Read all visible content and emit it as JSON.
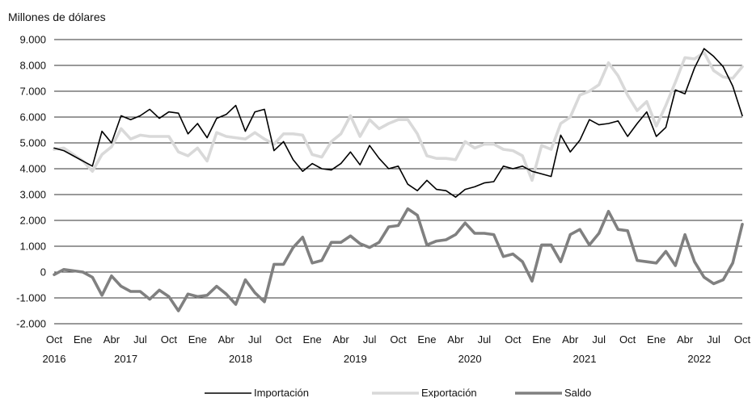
{
  "chart_data": {
    "type": "line",
    "ylabel": "Millones de dólares",
    "ylim": [
      -2000,
      9000
    ],
    "yticks": [
      -2000,
      -1000,
      0,
      1000,
      2000,
      3000,
      4000,
      5000,
      6000,
      7000,
      8000,
      9000
    ],
    "ytick_labels": [
      "-2.000",
      "-1.000",
      "0",
      "1.000",
      "2.000",
      "3.000",
      "4.000",
      "5.000",
      "6.000",
      "7.000",
      "8.000",
      "9.000"
    ],
    "grid": "horizontal",
    "x_start": "2016-10",
    "x_months": 73,
    "xtick_labels": [
      "Oct",
      "Ene",
      "Abr",
      "Jul",
      "Oct",
      "Ene",
      "Abr",
      "Jul",
      "Oct",
      "Ene",
      "Abr",
      "Jul",
      "Oct",
      "Ene",
      "Abr",
      "Jul",
      "Oct",
      "Ene",
      "Abr",
      "Jul",
      "Oct",
      "Ene",
      "Abr",
      "Jul",
      "Oct"
    ],
    "year_labels": [
      "2016",
      "2017",
      "2018",
      "2019",
      "2020",
      "2021",
      "2022"
    ],
    "legend_position": "bottom",
    "series": [
      {
        "name": "Importación",
        "color": "#000000",
        "values": [
          4800,
          4700,
          4500,
          4300,
          4100,
          5450,
          5000,
          6050,
          5900,
          6050,
          6300,
          5950,
          6200,
          6150,
          5350,
          5750,
          5200,
          5950,
          6100,
          6450,
          5450,
          6200,
          6300,
          4700,
          5050,
          4350,
          3900,
          4200,
          4000,
          3950,
          4200,
          4650,
          4150,
          4900,
          4400,
          4000,
          4100,
          3400,
          3150,
          3550,
          3200,
          3150,
          2900,
          3200,
          3300,
          3450,
          3500,
          4100,
          4000,
          4100,
          3900,
          3800,
          3700,
          5300,
          4650,
          5100,
          5900,
          5700,
          5750,
          5850,
          5250,
          5750,
          6200,
          5250,
          5600,
          7050,
          6900,
          7900,
          8650,
          8350,
          7950,
          7200,
          6050
        ]
      },
      {
        "name": "Exportación",
        "color": "#d9d9d9",
        "values": [
          4750,
          4800,
          4550,
          4300,
          3900,
          4550,
          4850,
          5550,
          5150,
          5300,
          5250,
          5250,
          5250,
          4650,
          4500,
          4800,
          4300,
          5400,
          5250,
          5200,
          5150,
          5400,
          5150,
          4950,
          5350,
          5350,
          5300,
          4550,
          4450,
          5050,
          5350,
          6050,
          5250,
          5900,
          5550,
          5750,
          5900,
          5900,
          5350,
          4500,
          4400,
          4400,
          4350,
          5050,
          4800,
          4950,
          4950,
          4750,
          4700,
          4500,
          3550,
          4900,
          4750,
          5750,
          6000,
          6850,
          7000,
          7250,
          8100,
          7600,
          6850,
          6250,
          6600,
          5650,
          6450,
          7350,
          8300,
          8250,
          8500,
          7800,
          7550,
          7500,
          7950
        ]
      },
      {
        "name": "Saldo",
        "color": "#808080",
        "values": [
          -100,
          100,
          50,
          0,
          -200,
          -900,
          -150,
          -550,
          -750,
          -750,
          -1050,
          -700,
          -950,
          -1500,
          -850,
          -950,
          -900,
          -550,
          -850,
          -1250,
          -300,
          -800,
          -1150,
          300,
          300,
          950,
          1350,
          350,
          450,
          1150,
          1150,
          1400,
          1100,
          950,
          1150,
          1750,
          1800,
          2450,
          2200,
          1050,
          1200,
          1250,
          1450,
          1900,
          1500,
          1500,
          1450,
          600,
          700,
          400,
          -350,
          1050,
          1050,
          400,
          1450,
          1650,
          1050,
          1500,
          2350,
          1650,
          1600,
          450,
          400,
          350,
          800,
          250,
          1450,
          400,
          -200,
          -450,
          -300,
          350,
          1850
        ]
      }
    ]
  }
}
